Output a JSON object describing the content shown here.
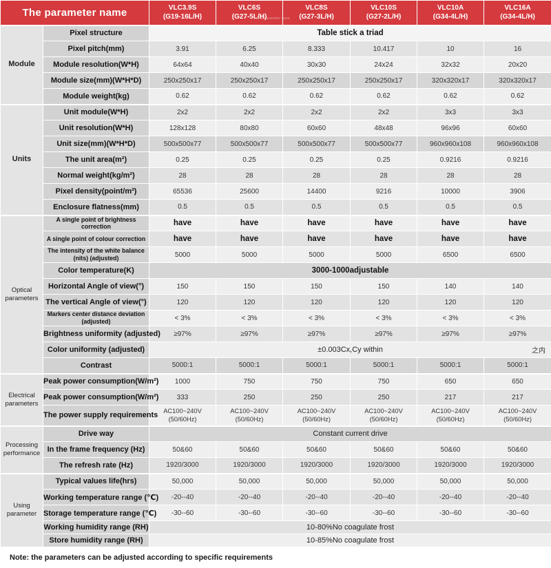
{
  "colors": {
    "accent_red": "#d43a3e",
    "header_text": "#ffffff"
  },
  "header": {
    "title": "The parameter name",
    "watermark": "The parameter name",
    "columns": [
      {
        "model": "VLC3.9S",
        "sub": "(G19-16L/H)"
      },
      {
        "model": "VLC6S",
        "sub": "(G27-5L/H)"
      },
      {
        "model": "VLC8S",
        "sub": "(G27-3L/H)"
      },
      {
        "model": "VLC10S",
        "sub": "(G27-2L/H)"
      },
      {
        "model": "VLC10A",
        "sub": "(G34-4L/H)"
      },
      {
        "model": "VLC16A",
        "sub": "(G34-4L/H)"
      }
    ]
  },
  "groups": [
    {
      "label": "Module",
      "rows": [
        {
          "label": "Pixel structure",
          "span": "Table stick a triad",
          "bold": true,
          "tone": "white"
        },
        {
          "label": "Pixel pitch(mm)",
          "values": [
            "3.91",
            "6.25",
            "8.333",
            "10.417",
            "10",
            "16"
          ]
        },
        {
          "label": "Module resolution(W*H)",
          "values": [
            "64x64",
            "40x40",
            "30x30",
            "24x24",
            "32x32",
            "20x20"
          ]
        },
        {
          "label": "Module size(mm)(W*H*D)",
          "values": [
            "250x250x17",
            "250x250x17",
            "250x250x17",
            "250x250x17",
            "320x320x17",
            "320x320x17"
          ],
          "tone": "dark"
        },
        {
          "label": "Module weight(kg)",
          "values": [
            "0.62",
            "0.62",
            "0.62",
            "0.62",
            "0.62",
            "0.62"
          ]
        }
      ]
    },
    {
      "label": "Units",
      "rows": [
        {
          "label": "Unit module(W*H)",
          "values": [
            "2x2",
            "2x2",
            "2x2",
            "2x2",
            "3x3",
            "3x3"
          ]
        },
        {
          "label": "Unit resolution(W*H)",
          "values": [
            "128x128",
            "80x80",
            "60x60",
            "48x48",
            "96x96",
            "60x60"
          ]
        },
        {
          "label": "Unit size(mm)(W*H*D)",
          "values": [
            "500x500x77",
            "500x500x77",
            "500x500x77",
            "500x500x77",
            "960x960x108",
            "960x960x108"
          ],
          "tone": "dark"
        },
        {
          "label": "The unit area(m²)",
          "values": [
            "0.25",
            "0.25",
            "0.25",
            "0.25",
            "0.9216",
            "0.9216"
          ]
        },
        {
          "label": "Normal weight(kg/m²)",
          "values": [
            "28",
            "28",
            "28",
            "28",
            "28",
            "28"
          ]
        },
        {
          "label": "Pixel density(point/m²)",
          "values": [
            "65536",
            "25600",
            "14400",
            "9216",
            "10000",
            "3906"
          ]
        },
        {
          "label": "Enclosure flatness(mm)",
          "values": [
            "0.5",
            "0.5",
            "0.5",
            "0.5",
            "0.5",
            "0.5"
          ]
        }
      ]
    },
    {
      "label": "Optical parameters",
      "rows": [
        {
          "label": "A single point of brightness correction",
          "small": true,
          "values": [
            "have",
            "have",
            "have",
            "have",
            "have",
            "have"
          ],
          "bold_values": true
        },
        {
          "label": "A single point of colour correction",
          "small": true,
          "values": [
            "have",
            "have",
            "have",
            "have",
            "have",
            "have"
          ],
          "bold_values": true
        },
        {
          "label": "The intensity of the white balance (nits) (adjusted)",
          "small": true,
          "values": [
            "5000",
            "5000",
            "5000",
            "5000",
            "6500",
            "6500"
          ]
        },
        {
          "label": "Color temperature(K)",
          "span": "3000-1000adjustable",
          "bold": true,
          "tone": "dark"
        },
        {
          "label": "Horizontal Angle of view(°)",
          "values": [
            "150",
            "150",
            "150",
            "150",
            "140",
            "140"
          ]
        },
        {
          "label": "The vertical Angle of view(°)",
          "values": [
            "120",
            "120",
            "120",
            "120",
            "120",
            "120"
          ]
        },
        {
          "label": "Markers center distance deviation (adjusted)",
          "small": true,
          "values": [
            "< 3%",
            "< 3%",
            "< 3%",
            "< 3%",
            "< 3%",
            "< 3%"
          ]
        },
        {
          "label": "Brightness uniformity (adjusted)",
          "values": [
            "≥97%",
            "≥97%",
            "≥97%",
            "≥97%",
            "≥97%",
            "≥97%"
          ]
        },
        {
          "label": "Color uniformity (adjusted)",
          "span": "±0.003Cx,Cy  within",
          "span_right": "之内"
        },
        {
          "label": "Contrast",
          "values": [
            "5000:1",
            "5000:1",
            "5000:1",
            "5000:1",
            "5000:1",
            "5000:1"
          ],
          "tone": "dark"
        }
      ]
    },
    {
      "label": "Electrical parameters",
      "rows": [
        {
          "label": "Peak power consumption(W/m²)",
          "values": [
            "1000",
            "750",
            "750",
            "750",
            "650",
            "650"
          ]
        },
        {
          "label": "Peak power consumption(W/m²)",
          "values": [
            "333",
            "250",
            "250",
            "250",
            "217",
            "217"
          ]
        },
        {
          "label": "The power supply requirements",
          "values": [
            "AC100~240V\n(50/60Hz)",
            "AC100~240V\n(50/60Hz)",
            "AC100~240V\n(50/60Hz)",
            "AC100~240V\n(50/60Hz)",
            "AC100~240V\n(50/60Hz)",
            "AC100~240V\n(50/60Hz)"
          ]
        }
      ]
    },
    {
      "label": "Processing performance",
      "rows": [
        {
          "label": "Drive way",
          "span": "Constant current drive",
          "tone": "dark"
        },
        {
          "label": "In the frame frequency (Hz)",
          "values": [
            "50&60",
            "50&60",
            "50&60",
            "50&60",
            "50&60",
            "50&60"
          ]
        },
        {
          "label": "The refresh rate (Hz)",
          "values": [
            "1920/3000",
            "1920/3000",
            "1920/3000",
            "1920/3000",
            "1920/3000",
            "1920/3000"
          ]
        }
      ]
    },
    {
      "label": "Using parameter",
      "rows": [
        {
          "label": "Typical values life(hrs)",
          "values": [
            "50,000",
            "50,000",
            "50,000",
            "50,000",
            "50,000",
            "50,000"
          ]
        },
        {
          "label": "Working temperature range (℃)",
          "values": [
            "-20--40",
            "-20--40",
            "-20--40",
            "-20--40",
            "-20--40",
            "-20--40"
          ]
        },
        {
          "label": "Storage temperature range (℃)",
          "values": [
            "-30--60",
            "-30--60",
            "-30--60",
            "-30--60",
            "-30--60",
            "-30--60"
          ]
        },
        {
          "label": "Working humidity range (RH)",
          "span": "10-80%No coagulate frost"
        },
        {
          "label": "Store humidity range (RH)",
          "span": "10-85%No coagulate frost"
        }
      ]
    }
  ],
  "note": "Note: the parameters can be adjusted according to specific requirements"
}
